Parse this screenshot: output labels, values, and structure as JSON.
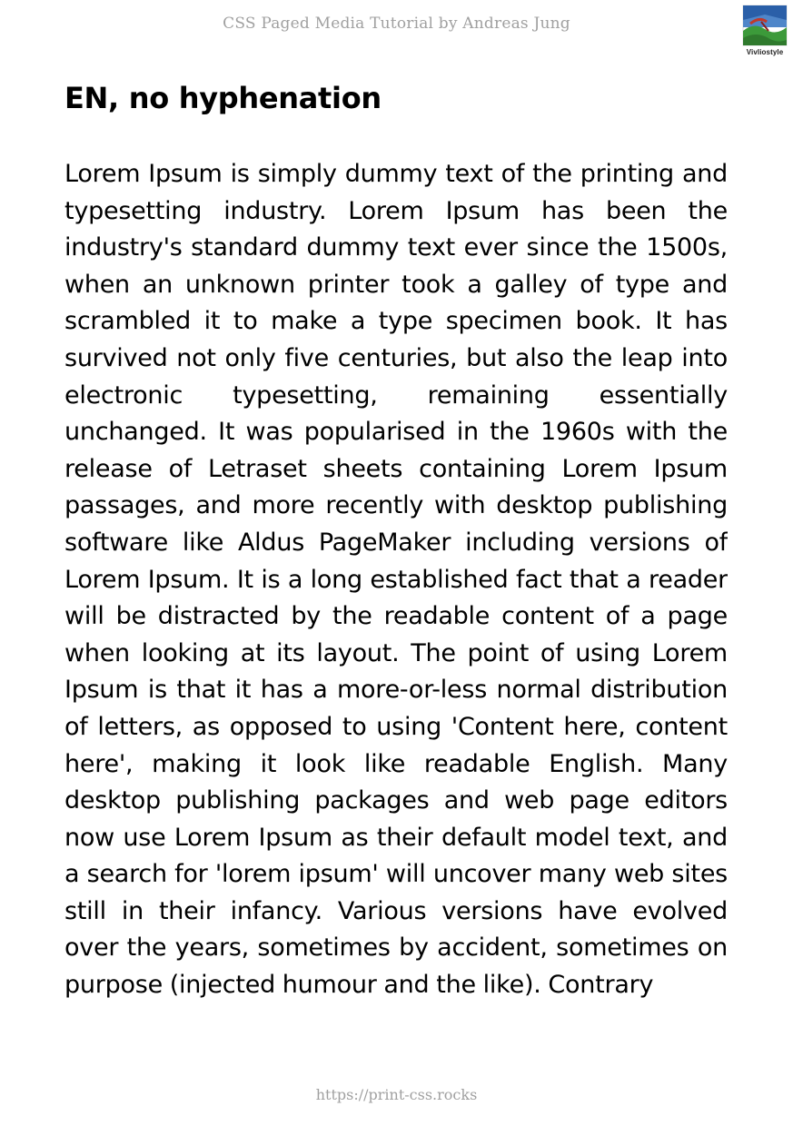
{
  "header": {
    "running_title": "CSS Paged Media Tutorial by Andreas Jung",
    "logo_label": "Vivliostyle",
    "logo_icon": "vivliostyle-logo-icon"
  },
  "main": {
    "heading": "EN, no hyphenation",
    "paragraph": "Lorem Ipsum is simply dummy text of the printing and typesetting industry. Lorem Ipsum has been the industry's standard dummy text ever since the 1500s, when an unknown printer took a galley of type and scrambled it to make a type specimen book. It has survived not only five centuries, but also the leap into electronic typesetting, remaining essentially unchanged. It was popularised in the 1960s with the release of Letraset sheets containing Lorem Ipsum passages, and more recently with desktop publishing software like Aldus PageMaker including versions of Lorem Ipsum. It is a long established fact that a reader will be distracted by the readable content of a page when looking at its layout. The point of using Lorem Ipsum is that it has a more-or-less normal distribution of letters, as opposed to using 'Content here, content here', making it look like readable English. Many desktop publishing packages and web page editors now use Lorem Ipsum as their default model text, and a search for 'lorem ipsum' will uncover many web sites still in their infancy. Various versions have evolved over the years, sometimes by accident, sometimes on purpose (injected humour and the like). Contrary"
  },
  "footer": {
    "url": "https://print-css.rocks"
  },
  "colors": {
    "running_text": "#a0a0a0",
    "body_text": "#000000",
    "logo_blue": "#2a5fa8",
    "logo_green": "#3c9a3a",
    "logo_red": "#c0392b"
  }
}
